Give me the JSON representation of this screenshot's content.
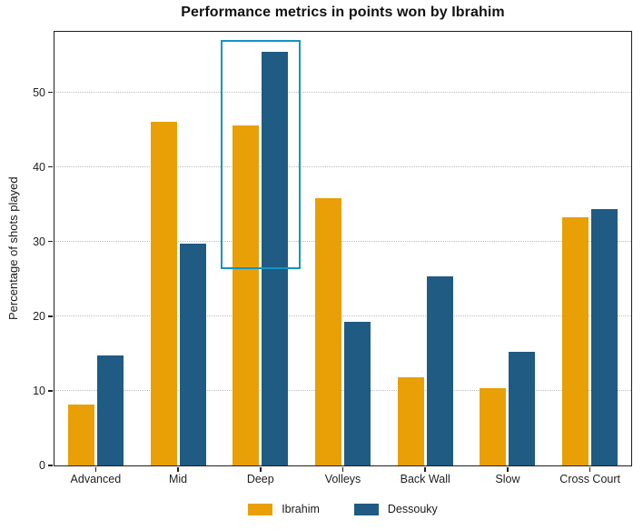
{
  "chart_data": {
    "type": "bar",
    "title": "Performance metrics in points won by Ibrahim",
    "xlabel": "",
    "ylabel": "Percentage of shots played",
    "categories": [
      "Advanced",
      "Mid",
      "Deep",
      "Volleys",
      "Back Wall",
      "Slow",
      "Cross Court"
    ],
    "series": [
      {
        "name": "Ibrahim",
        "color": "#E8A006",
        "values": [
          8.2,
          46.1,
          45.6,
          35.8,
          11.8,
          10.3,
          33.3
        ]
      },
      {
        "name": "Dessouky",
        "color": "#1F5B83",
        "values": [
          14.7,
          29.7,
          55.4,
          19.2,
          25.3,
          15.2,
          34.4
        ]
      }
    ],
    "ylim": [
      0,
      58.1
    ],
    "yticks": [
      0,
      10,
      20,
      30,
      40,
      50
    ],
    "grid": true,
    "legend_position": "bottom",
    "annotation": {
      "type": "rect",
      "category": "Deep",
      "y_bottom": 26.3,
      "y_top": 57.0,
      "color": "#1095C5"
    }
  }
}
